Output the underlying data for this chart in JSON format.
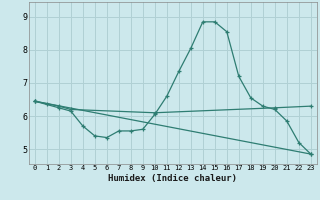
{
  "xlabel": "Humidex (Indice chaleur)",
  "background_color": "#cce8ec",
  "grid_color": "#b0d0d4",
  "line_color": "#2e7d72",
  "x_ticks": [
    0,
    1,
    2,
    3,
    4,
    5,
    6,
    7,
    8,
    9,
    10,
    11,
    12,
    13,
    14,
    15,
    16,
    17,
    18,
    19,
    20,
    21,
    22,
    23
  ],
  "y_ticks": [
    5,
    6,
    7,
    8,
    9
  ],
  "ylim": [
    4.55,
    9.45
  ],
  "xlim": [
    -0.5,
    23.5
  ],
  "series1_x": [
    0,
    1,
    2,
    3,
    4,
    5,
    6,
    7,
    8,
    9,
    10,
    11,
    12,
    13,
    14,
    15,
    16,
    17,
    18,
    19,
    20,
    21,
    22,
    23
  ],
  "series1_y": [
    6.45,
    6.35,
    6.25,
    6.15,
    5.7,
    5.4,
    5.35,
    5.55,
    5.55,
    5.6,
    6.05,
    6.6,
    7.35,
    8.05,
    8.85,
    8.85,
    8.55,
    7.2,
    6.55,
    6.3,
    6.2,
    5.85,
    5.2,
    4.85
  ],
  "series2_x": [
    0,
    2,
    3,
    10,
    20,
    23
  ],
  "series2_y": [
    6.45,
    6.3,
    6.2,
    6.1,
    6.25,
    6.3
  ],
  "series3_x": [
    0,
    23
  ],
  "series3_y": [
    6.45,
    4.85
  ]
}
